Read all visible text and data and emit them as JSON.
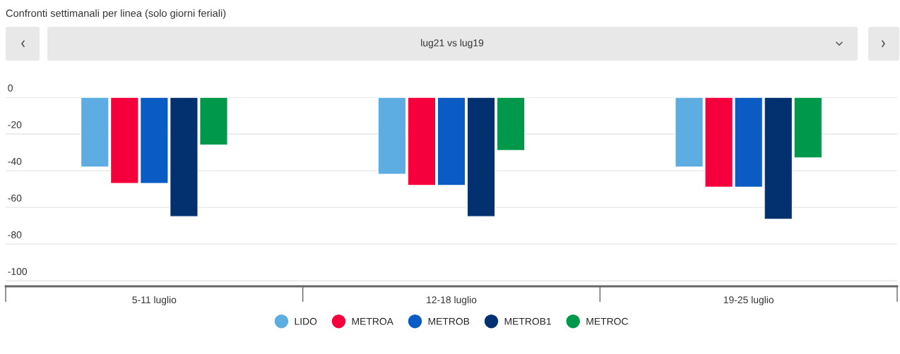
{
  "chart_data": {
    "type": "bar",
    "title": "Confronti settimanali per linea (solo giorni feriali)",
    "subtitle": "lug21 vs lug19",
    "categories": [
      "5-11 luglio",
      "12-18 luglio",
      "19-25 luglio"
    ],
    "series": [
      {
        "name": "LIDO",
        "color": "#5dade2",
        "values": [
          -38,
          -42,
          -38
        ]
      },
      {
        "name": "METROA",
        "color": "#f5003d",
        "values": [
          -47,
          -48,
          -49
        ]
      },
      {
        "name": "METROB",
        "color": "#0a5bc4",
        "values": [
          -47,
          -48,
          -49
        ]
      },
      {
        "name": "METROB1",
        "color": "#03306e",
        "values": [
          -65,
          -65,
          -66.5
        ]
      },
      {
        "name": "METROC",
        "color": "#00984a",
        "values": [
          -26,
          -29,
          -33
        ]
      }
    ],
    "ylim": [
      -103,
      0
    ],
    "yticks": [
      0,
      -20,
      -40,
      -60,
      -80,
      -100
    ],
    "grid": "y",
    "legend": "bottom"
  }
}
